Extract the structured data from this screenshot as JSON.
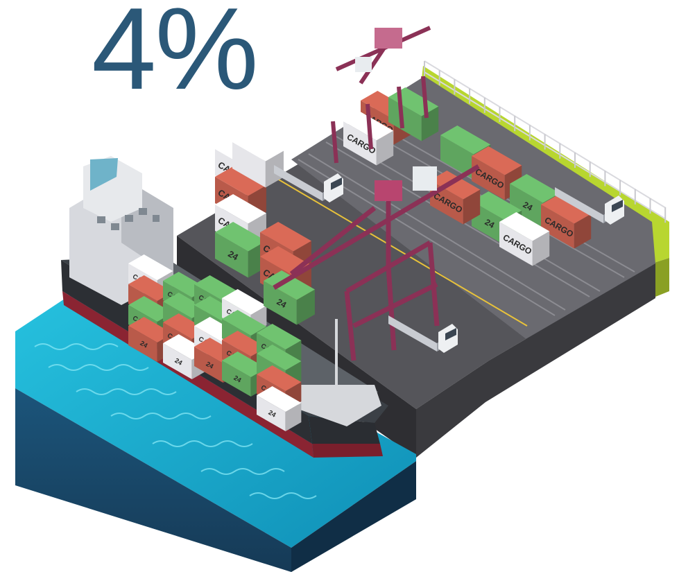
{
  "headline": {
    "value": "4%"
  },
  "container_labels": {
    "cargo": "CARGO",
    "number": "24"
  },
  "colors": {
    "headline": "#2b5878",
    "water": "#1fb6d6",
    "container_red": "#b95a4a",
    "container_green": "#5fa55f",
    "container_white": "#e6e6ea",
    "crane": "#8b3156",
    "dock": "#4b4b4f",
    "grass": "#b8d630"
  }
}
